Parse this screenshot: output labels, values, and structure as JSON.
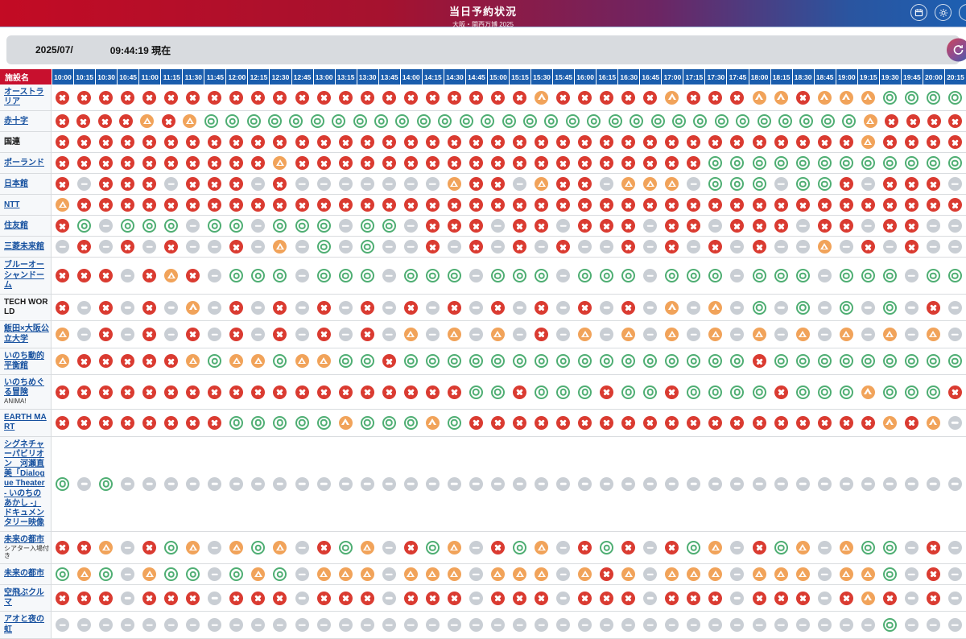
{
  "header": {
    "title": "当日予約状況",
    "subtitle": "大阪・関西万博 2025",
    "icons": [
      "calendar-icon",
      "gear-icon",
      "circle-icon-partial"
    ]
  },
  "statusbar": {
    "date": "2025/07/",
    "time": "09:44:19 現在",
    "refresh_icon": "refresh-icon"
  },
  "colors": {
    "header_red": "#c8102e",
    "header_blue": "#1a5dad",
    "status_red": "#da3b31",
    "status_green": "#4fae73",
    "status_orange": "#f1a35a",
    "status_gray": "#c9ced4",
    "link_blue": "#17519f"
  },
  "table": {
    "facility_header": "施設名",
    "times": [
      "10:00",
      "10:15",
      "10:30",
      "10:45",
      "11:00",
      "11:15",
      "11:30",
      "11:45",
      "12:00",
      "12:15",
      "12:30",
      "12:45",
      "13:00",
      "13:15",
      "13:30",
      "13:45",
      "14:00",
      "14:15",
      "14:30",
      "14:45",
      "15:00",
      "15:15",
      "15:30",
      "15:45",
      "16:00",
      "16:15",
      "16:30",
      "16:45",
      "17:00",
      "17:15",
      "17:30",
      "17:45",
      "18:00",
      "18:15",
      "18:30",
      "18:45",
      "19:00",
      "19:15",
      "19:30",
      "19:45",
      "20:00",
      "20:15"
    ],
    "status_legend": {
      "x": "sold-out-cross-icon",
      "o": "available-circle-icon",
      "t": "few-left-triangle-icon",
      "d": "unavailable-dash-icon"
    },
    "rows": [
      {
        "name": "オーストラリア",
        "sub": "",
        "link": true,
        "status": "xxxxxxxxxxxxxxxxxxxxxxtxxxxxtxxxttxtttoooo"
      },
      {
        "name": "赤十字",
        "sub": "",
        "link": true,
        "status": "xxxxtxtoooooooooooooooooooooooooooooootxxxx"
      },
      {
        "name": "国連",
        "sub": "",
        "link": false,
        "status": "xxxxxxxxxxxxxxxxxxxxxxxxxxxxxxxxxxxxxtxxxx"
      },
      {
        "name": "ポーランド",
        "sub": "",
        "link": true,
        "status": "xxxxxxxxxxtxxxxxxxxxxxxxxxxxxxoooooooooooo"
      },
      {
        "name": "日本館",
        "sub": "",
        "link": true,
        "status": "xdxxxdxxxdxdddddddtxxdtxxdtttdooodooxdxxxd"
      },
      {
        "name": "NTT",
        "sub": "",
        "link": true,
        "status": "txxxxxxxxxxxxxxxxxxxxxxxxxxxxxxxxxxxxxxxxx"
      },
      {
        "name": "住友館",
        "sub": "",
        "link": true,
        "status": "xodooodoodooodoodxxxdxxdxxxdxxdxxxdxxdxxdd"
      },
      {
        "name": "三菱未来館",
        "sub": "",
        "link": true,
        "status": "dxdxdxddxdtdododdxdxdxdxddxdxdxdxddtdxdxdd"
      },
      {
        "name": "ブルーオーシャンドーム",
        "sub": "",
        "link": true,
        "status": "xxxdxtxdooodooodooodooodooodooodooodooodoo"
      },
      {
        "name": "TECH WORLD",
        "sub": "",
        "link": false,
        "status": "xdxdxdtdxdxdxdxdxdxdxdxdxdxdtdtdododododxd"
      },
      {
        "name": "飯田×大阪公立大学",
        "sub": "",
        "link": true,
        "status": "tdxdxdxdxdxdxdxdtdtdtdxdtdtdtdtdtdtdtdtdtd"
      },
      {
        "name": "いのち動的平衡館",
        "sub": "",
        "link": true,
        "status": "txxxxxtottottooxooooooooooooooooxooooooooo"
      },
      {
        "name": "いのちめぐる冒険",
        "sub": "ANIMA!",
        "link": true,
        "status": "xxxxxxxxxxxxxxxxxxxooxoooxooxooooxoootooox"
      },
      {
        "name": "EARTH MART",
        "sub": "",
        "link": true,
        "status": "xxxxxxxxoooootoootoxxxxxxxxxxxxxxxxxxxtxtd"
      },
      {
        "name": "シグネチャーパビリオン　河瀬直美「Dialogue Theater - いのちのあかし -」ドキュメンタリー映像",
        "sub": "",
        "link": true,
        "status": "ododdddddddddddddddddddddddddddddddddddddd"
      },
      {
        "name": "未来の都市",
        "sub": "シアター入場付き",
        "link": true,
        "status": "xxtdxotdtotdxotdxotdxotdxoxdxotdxotdtoodxd"
      },
      {
        "name": "未来の都市",
        "sub": "",
        "link": true,
        "status": "otodtoodotodtttdtttdtttdtxtdtttdtttdttodxd"
      },
      {
        "name": "空飛ぶクルマ",
        "sub": "",
        "link": true,
        "status": "xxxdxxxdxxxdxxxdxxxdxxxdxxxdxxxdxxxdxtxdxd"
      },
      {
        "name": "アオと夜の虹",
        "sub": "",
        "link": true,
        "status": "ddddddddddddddddddddddddddddddddddddddoddd"
      }
    ]
  }
}
